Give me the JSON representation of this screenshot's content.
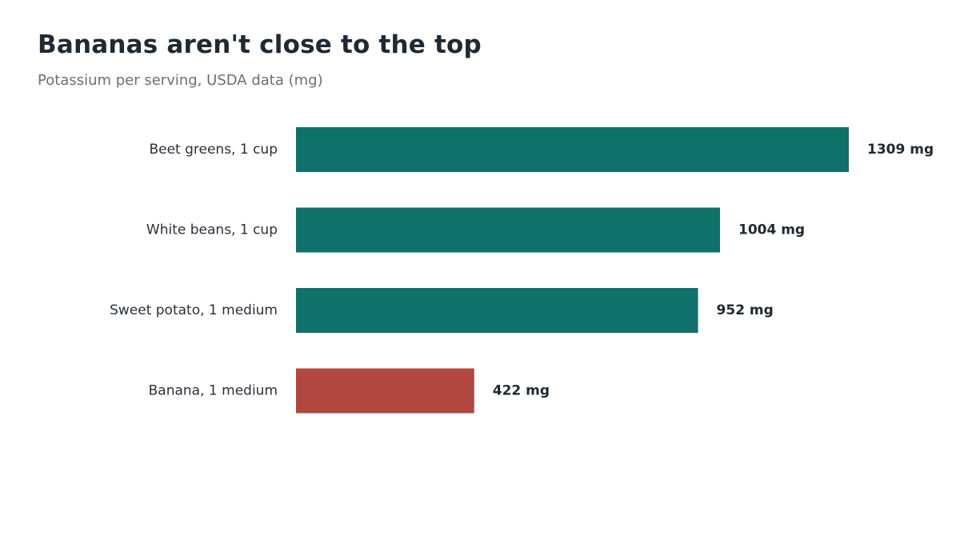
{
  "chart_data": {
    "type": "bar",
    "orientation": "horizontal",
    "title": "Bananas aren't close to the top",
    "subtitle": "Potassium per serving, USDA data (mg)",
    "categories": [
      "Beet greens, 1 cup",
      "White beans, 1 cup",
      "Sweet potato, 1 medium",
      "Banana, 1 medium"
    ],
    "values": [
      1309,
      1004,
      952,
      422
    ],
    "value_labels": [
      "1309 mg",
      "1004 mg",
      "952 mg",
      "422 mg"
    ],
    "unit": "mg",
    "xlim": [
      0,
      1309
    ],
    "grid": false,
    "legend": "none",
    "colors": {
      "default": "#10706c",
      "highlight": "#b2473f"
    },
    "highlight_category": "Banana, 1 medium"
  }
}
